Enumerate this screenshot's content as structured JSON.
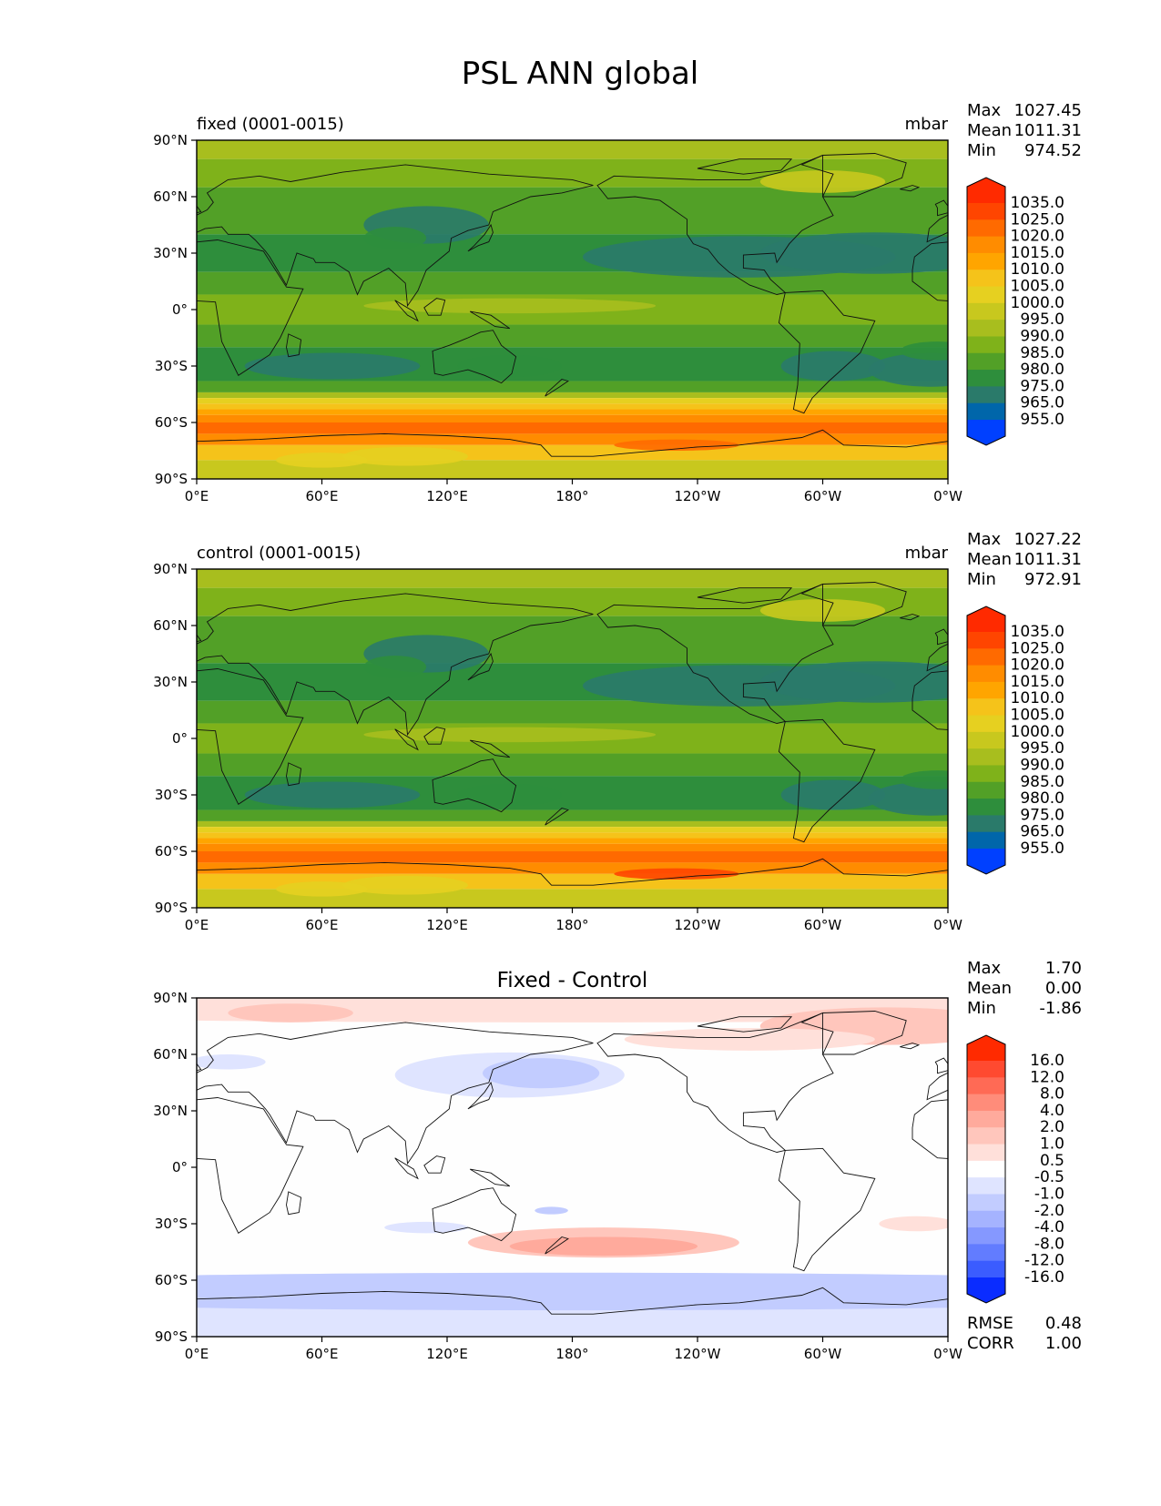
{
  "figure": {
    "title": "PSL ANN global",
    "x_ticks": [
      "0°E",
      "60°E",
      "120°E",
      "180°",
      "120°W",
      "60°W",
      "0°W"
    ],
    "y_ticks": [
      "90°N",
      "60°N",
      "30°N",
      "0°",
      "30°S",
      "60°S",
      "90°S"
    ]
  },
  "panels": [
    {
      "id": "fixed",
      "left_title": "fixed (0001-0015)",
      "center_title": "",
      "units": "mbar",
      "stats": [
        {
          "label": "Max",
          "value": "1027.45"
        },
        {
          "label": "Mean",
          "value": "1011.31"
        },
        {
          "label": "Min",
          "value": "974.52"
        }
      ],
      "colorbar": {
        "levels": [
          "1035.0",
          "1025.0",
          "1020.0",
          "1015.0",
          "1010.0",
          "1005.0",
          "1000.0",
          "995.0",
          "990.0",
          "985.0",
          "980.0",
          "975.0",
          "965.0",
          "955.0"
        ],
        "colors": [
          "#ff2a00",
          "#ff4500",
          "#ff6a00",
          "#ff8c00",
          "#ffa500",
          "#f5c31a",
          "#e6d020",
          "#c8c81e",
          "#a8be1e",
          "#7fb21a",
          "#52a027",
          "#2e8e3c",
          "#2a7a6a",
          "#0066aa",
          "#0050ff"
        ],
        "top_arrow": "#ff2a00",
        "bottom_arrow": "#0040ff"
      },
      "field": "abs"
    },
    {
      "id": "control",
      "left_title": "control (0001-0015)",
      "center_title": "",
      "units": "mbar",
      "stats": [
        {
          "label": "Max",
          "value": "1027.22"
        },
        {
          "label": "Mean",
          "value": "1011.31"
        },
        {
          "label": "Min",
          "value": "972.91"
        }
      ],
      "colorbar": {
        "levels": [
          "1035.0",
          "1025.0",
          "1020.0",
          "1015.0",
          "1010.0",
          "1005.0",
          "1000.0",
          "995.0",
          "990.0",
          "985.0",
          "980.0",
          "975.0",
          "965.0",
          "955.0"
        ],
        "colors": [
          "#ff2a00",
          "#ff4500",
          "#ff6a00",
          "#ff8c00",
          "#ffa500",
          "#f5c31a",
          "#e6d020",
          "#c8c81e",
          "#a8be1e",
          "#7fb21a",
          "#52a027",
          "#2e8e3c",
          "#2a7a6a",
          "#0066aa",
          "#0050ff"
        ],
        "top_arrow": "#ff2a00",
        "bottom_arrow": "#0040ff"
      },
      "field": "abs"
    },
    {
      "id": "diff",
      "left_title": "",
      "center_title": "Fixed - Control",
      "units": "",
      "stats": [
        {
          "label": "Max",
          "value": "1.70"
        },
        {
          "label": "Mean",
          "value": "0.00"
        },
        {
          "label": "Min",
          "value": "-1.86"
        }
      ],
      "colorbar": {
        "levels": [
          "16.0",
          "12.0",
          "8.0",
          "4.0",
          "2.0",
          "1.0",
          "0.5",
          "-0.5",
          "-1.0",
          "-2.0",
          "-4.0",
          "-8.0",
          "-12.0",
          "-16.0"
        ],
        "colors": [
          "#ff2a00",
          "#ff4a30",
          "#ff6a55",
          "#ff8c7a",
          "#ffaa9c",
          "#ffc6bc",
          "#ffe0da",
          "#ffffff",
          "#dfe4ff",
          "#c2ccff",
          "#a5b3ff",
          "#8598ff",
          "#627cff",
          "#3b5cff",
          "#1a3cff"
        ],
        "top_arrow": "#ff2a00",
        "bottom_arrow": "#0a2cff"
      },
      "field": "diff",
      "metrics": [
        {
          "label": "RMSE",
          "value": "0.48"
        },
        {
          "label": "CORR",
          "value": "1.00"
        }
      ]
    }
  ],
  "chart_data": [
    {
      "type": "heatmap",
      "title": "fixed (0001-0015)",
      "units": "mbar",
      "x_range": [
        0,
        360
      ],
      "y_range": [
        -90,
        90
      ],
      "stats": {
        "max": 1027.45,
        "mean": 1011.31,
        "min": 974.52
      },
      "contour_levels": [
        955,
        965,
        975,
        980,
        985,
        990,
        995,
        1000,
        1005,
        1010,
        1015,
        1020,
        1025,
        1035
      ]
    },
    {
      "type": "heatmap",
      "title": "control (0001-0015)",
      "units": "mbar",
      "x_range": [
        0,
        360
      ],
      "y_range": [
        -90,
        90
      ],
      "stats": {
        "max": 1027.22,
        "mean": 1011.31,
        "min": 972.91
      },
      "contour_levels": [
        955,
        965,
        975,
        980,
        985,
        990,
        995,
        1000,
        1005,
        1010,
        1015,
        1020,
        1025,
        1035
      ]
    },
    {
      "type": "heatmap",
      "title": "Fixed - Control",
      "x_range": [
        0,
        360
      ],
      "y_range": [
        -90,
        90
      ],
      "stats": {
        "max": 1.7,
        "mean": 0.0,
        "min": -1.86
      },
      "rmse": 0.48,
      "corr": 1.0,
      "contour_levels": [
        -16,
        -12,
        -8,
        -4,
        -2,
        -1,
        -0.5,
        0.5,
        1,
        2,
        4,
        8,
        12,
        16
      ]
    }
  ]
}
